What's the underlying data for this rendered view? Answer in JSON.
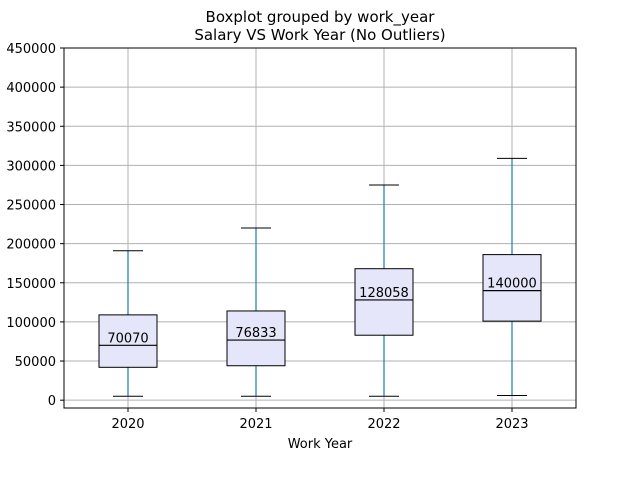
{
  "chart_data": {
    "type": "box",
    "title": "Boxplot grouped by work_year",
    "subtitle": "Salary VS Work Year (No Outliers)",
    "xlabel": "Work Year",
    "ylabel": "",
    "ylim": [
      -10000,
      450000
    ],
    "yticks": [
      0,
      50000,
      100000,
      150000,
      200000,
      250000,
      300000,
      350000,
      400000,
      450000
    ],
    "grid": true,
    "colors": {
      "box_fill": "#e6e6fa",
      "box_edge": "#000000",
      "whisker": "#1f77b4",
      "median": "#000000",
      "grid": "#b0b0b0"
    },
    "categories": [
      "2020",
      "2021",
      "2022",
      "2023"
    ],
    "boxes": [
      {
        "category": "2020",
        "whisker_low": 5000,
        "q1": 42000,
        "median": 70070,
        "q3": 109000,
        "whisker_high": 191000,
        "median_label": "70070"
      },
      {
        "category": "2021",
        "whisker_low": 5000,
        "q1": 44000,
        "median": 76833,
        "q3": 114000,
        "whisker_high": 220000,
        "median_label": "76833"
      },
      {
        "category": "2022",
        "whisker_low": 5000,
        "q1": 83000,
        "median": 128058,
        "q3": 168000,
        "whisker_high": 275000,
        "median_label": "128058"
      },
      {
        "category": "2023",
        "whisker_low": 6000,
        "q1": 101000,
        "median": 140000,
        "q3": 186000,
        "whisker_high": 309000,
        "median_label": "140000"
      }
    ]
  }
}
